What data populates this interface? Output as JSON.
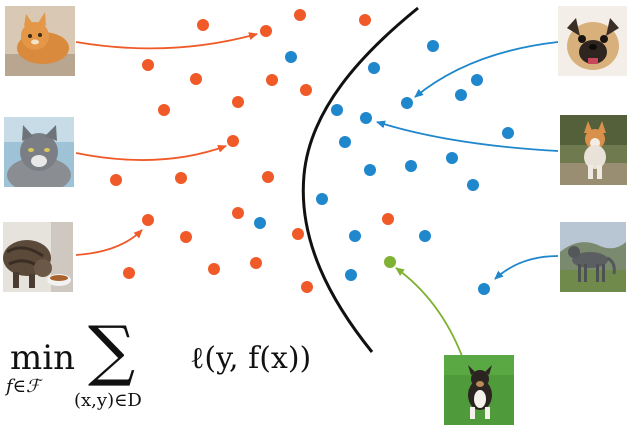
{
  "diagram": {
    "colors": {
      "cat": "#f05a28",
      "dog": "#1f87cc",
      "query": "#7fb132",
      "boundary": "#111111"
    },
    "thumbnails": [
      {
        "name": "cat-image-1",
        "depicts": "orange cat"
      },
      {
        "name": "cat-image-2",
        "depicts": "grey fluffy cat"
      },
      {
        "name": "cat-image-3",
        "depicts": "tabby cat eating"
      },
      {
        "name": "dog-image-1",
        "depicts": "pug"
      },
      {
        "name": "dog-image-2",
        "depicts": "corgi"
      },
      {
        "name": "dog-image-3",
        "depicts": "wolfhound"
      },
      {
        "name": "dog-image-4",
        "depicts": "running collie"
      }
    ]
  },
  "formula": {
    "min": "min",
    "min_sub": "f∈ℱ",
    "sum": "∑",
    "sum_sub": "(x,y)∈D",
    "loss": "ℓ(y, f(x))"
  }
}
